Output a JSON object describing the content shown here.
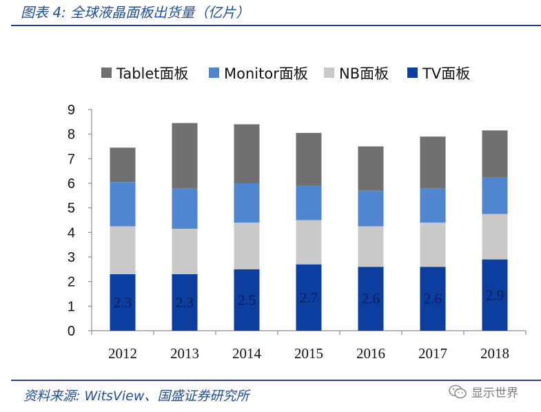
{
  "header": {
    "title": "图表 4: 全球液晶面板出货量（亿片）"
  },
  "footer": {
    "source": "资料来源: WitsView、国盛证券研究所",
    "watermark": "显示世界"
  },
  "colors": {
    "TV面板": "#0b3e9e",
    "NB面板": "#c9c9c9",
    "Monitor面板": "#4f86cf",
    "Tablet面板": "#707070",
    "accent": "#1f4e9c"
  },
  "chart_data": {
    "type": "bar",
    "stacked": true,
    "title": "",
    "xlabel": "",
    "ylabel": "",
    "ylim": [
      0,
      9
    ],
    "yticks": [
      0,
      1,
      2,
      3,
      4,
      5,
      6,
      7,
      8,
      9
    ],
    "categories": [
      "2012",
      "2013",
      "2014",
      "2015",
      "2016",
      "2017",
      "2018"
    ],
    "legend_order": [
      "Tablet面板",
      "Monitor面板",
      "NB面板",
      "TV面板"
    ],
    "legend_position": "top",
    "series": [
      {
        "name": "TV面板",
        "values": [
          2.3,
          2.3,
          2.5,
          2.7,
          2.6,
          2.6,
          2.9
        ]
      },
      {
        "name": "NB面板",
        "values": [
          1.95,
          1.85,
          1.9,
          1.8,
          1.65,
          1.8,
          1.85
        ]
      },
      {
        "name": "Monitor面板",
        "values": [
          1.8,
          1.65,
          1.6,
          1.4,
          1.45,
          1.4,
          1.5
        ]
      },
      {
        "name": "Tablet面板",
        "values": [
          1.4,
          2.65,
          2.4,
          2.15,
          1.8,
          2.1,
          1.9
        ]
      }
    ],
    "data_labels": {
      "series": "TV面板",
      "values": [
        "2.3",
        "2.3",
        "2.5",
        "2.7",
        "2.6",
        "2.6",
        "2.9"
      ]
    }
  }
}
